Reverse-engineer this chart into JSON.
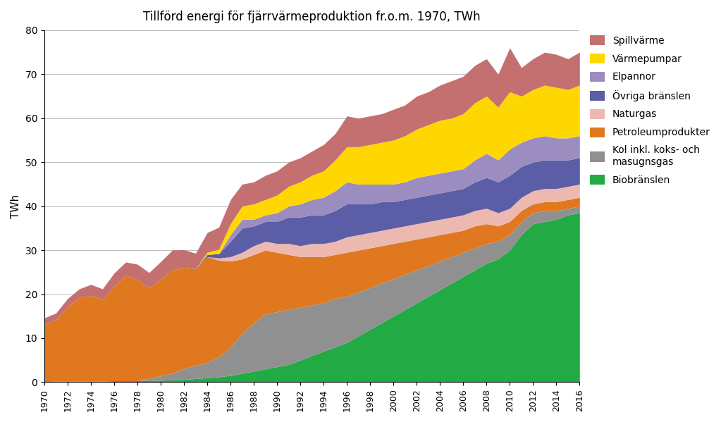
{
  "title": "Tillförd energi för fjärrvärmeproduktion fr.o.m. 1970, TWh",
  "ylabel": "TWh",
  "years": [
    1970,
    1971,
    1972,
    1973,
    1974,
    1975,
    1976,
    1977,
    1978,
    1979,
    1980,
    1981,
    1982,
    1983,
    1984,
    1985,
    1986,
    1987,
    1988,
    1989,
    1990,
    1991,
    1992,
    1993,
    1994,
    1995,
    1996,
    1997,
    1998,
    1999,
    2000,
    2001,
    2002,
    2003,
    2004,
    2005,
    2006,
    2007,
    2008,
    2009,
    2010,
    2011,
    2012,
    2013,
    2014,
    2015,
    2016
  ],
  "series": {
    "Biobranslen": [
      0.1,
      0.2,
      0.2,
      0.2,
      0.2,
      0.2,
      0.3,
      0.3,
      0.3,
      0.4,
      0.4,
      0.5,
      0.6,
      0.8,
      1.0,
      1.2,
      1.5,
      2.0,
      2.5,
      3.0,
      3.5,
      4.0,
      5.0,
      6.0,
      7.0,
      8.0,
      9.0,
      10.5,
      12.0,
      13.5,
      15.0,
      16.5,
      18.0,
      19.5,
      21.0,
      22.5,
      24.0,
      25.5,
      27.0,
      28.0,
      30.0,
      33.5,
      36.0,
      36.5,
      37.0,
      38.0,
      38.5
    ],
    "Kol": [
      0.0,
      0.0,
      0.0,
      0.0,
      0.0,
      0.0,
      0.0,
      0.0,
      0.0,
      0.5,
      1.0,
      1.5,
      2.5,
      3.0,
      3.5,
      4.5,
      6.5,
      9.0,
      11.0,
      12.5,
      12.5,
      12.5,
      12.0,
      11.5,
      11.0,
      11.0,
      10.5,
      10.0,
      9.5,
      9.0,
      8.5,
      8.0,
      7.5,
      7.0,
      6.5,
      6.0,
      5.5,
      5.0,
      4.5,
      4.0,
      3.5,
      3.0,
      2.5,
      2.5,
      2.0,
      1.5,
      1.5
    ],
    "Petroleumprodukter": [
      13.0,
      14.0,
      17.0,
      19.0,
      19.5,
      18.5,
      21.5,
      24.0,
      23.0,
      20.5,
      22.0,
      23.5,
      23.0,
      22.0,
      24.0,
      22.0,
      19.5,
      17.0,
      15.5,
      14.5,
      13.5,
      12.5,
      11.5,
      11.0,
      10.5,
      10.0,
      10.0,
      9.5,
      9.0,
      8.5,
      8.0,
      7.5,
      7.0,
      6.5,
      6.0,
      5.5,
      5.0,
      5.0,
      4.5,
      3.5,
      3.0,
      2.5,
      2.0,
      2.0,
      2.0,
      2.0,
      2.0
    ],
    "Naturgas": [
      0.0,
      0.0,
      0.0,
      0.0,
      0.0,
      0.0,
      0.0,
      0.0,
      0.0,
      0.0,
      0.0,
      0.0,
      0.0,
      0.0,
      0.0,
      0.5,
      1.0,
      1.5,
      2.0,
      2.0,
      2.0,
      2.5,
      2.5,
      3.0,
      3.0,
      3.0,
      3.5,
      3.5,
      3.5,
      3.5,
      3.5,
      3.5,
      3.5,
      3.5,
      3.5,
      3.5,
      3.5,
      3.5,
      3.5,
      3.0,
      3.0,
      3.0,
      3.0,
      3.0,
      3.0,
      3.0,
      3.0
    ],
    "Ovriga_branslen": [
      0.0,
      0.0,
      0.0,
      0.0,
      0.0,
      0.0,
      0.0,
      0.0,
      0.0,
      0.0,
      0.0,
      0.0,
      0.0,
      0.0,
      0.5,
      1.0,
      3.5,
      5.5,
      4.5,
      4.5,
      5.0,
      6.0,
      6.5,
      6.5,
      6.5,
      7.0,
      7.5,
      7.0,
      6.5,
      6.5,
      6.0,
      6.0,
      6.0,
      6.0,
      6.0,
      6.0,
      6.0,
      6.5,
      7.0,
      7.0,
      7.5,
      7.0,
      6.5,
      6.5,
      6.5,
      6.0,
      6.0
    ],
    "Elpannor": [
      0.0,
      0.0,
      0.0,
      0.0,
      0.0,
      0.0,
      0.0,
      0.0,
      0.0,
      0.0,
      0.0,
      0.0,
      0.0,
      0.0,
      0.0,
      0.0,
      1.5,
      2.0,
      1.5,
      1.5,
      2.0,
      2.5,
      3.0,
      3.5,
      4.0,
      4.5,
      5.0,
      4.5,
      4.5,
      4.0,
      4.0,
      4.0,
      4.5,
      4.5,
      4.5,
      4.5,
      4.5,
      5.0,
      5.5,
      5.0,
      6.0,
      5.5,
      5.5,
      5.5,
      5.0,
      5.0,
      5.0
    ],
    "Varmepumpar": [
      0.0,
      0.0,
      0.0,
      0.0,
      0.0,
      0.0,
      0.0,
      0.0,
      0.0,
      0.0,
      0.0,
      0.0,
      0.0,
      0.0,
      0.5,
      1.0,
      2.5,
      3.0,
      3.5,
      3.5,
      4.0,
      4.5,
      5.0,
      5.5,
      6.0,
      7.0,
      8.0,
      8.5,
      9.0,
      9.5,
      10.0,
      10.5,
      11.0,
      11.5,
      12.0,
      12.0,
      12.5,
      13.0,
      13.0,
      12.0,
      13.0,
      10.5,
      11.0,
      11.5,
      11.5,
      11.0,
      11.5
    ],
    "Spillvarme": [
      1.5,
      1.5,
      1.8,
      2.0,
      2.5,
      2.5,
      3.0,
      3.0,
      3.5,
      3.5,
      4.0,
      4.5,
      4.0,
      3.5,
      4.5,
      5.0,
      5.5,
      5.0,
      5.0,
      5.5,
      5.5,
      5.5,
      5.5,
      5.5,
      6.0,
      6.0,
      7.0,
      6.5,
      6.5,
      6.5,
      7.0,
      7.0,
      7.5,
      7.5,
      8.0,
      8.5,
      8.5,
      8.5,
      8.5,
      7.5,
      10.0,
      6.5,
      7.0,
      7.5,
      7.5,
      7.0,
      7.5
    ]
  },
  "colors": {
    "Biobranslen": "#22AA44",
    "Kol": "#909090",
    "Petroleumprodukter": "#E07820",
    "Naturgas": "#EDB8B0",
    "Ovriga_branslen": "#5B5EA6",
    "Elpannor": "#9B8DC0",
    "Varmepumpar": "#FFD700",
    "Spillvarme": "#C47070"
  },
  "legend_labels": {
    "Biobranslen": "Biobränslen",
    "Kol": "Kol inkl. koks- och\nmasugnsgas",
    "Petroleumprodukter": "Petroleumprodukter",
    "Naturgas": "Naturgas",
    "Ovriga_branslen": "Övriga bränslen",
    "Elpannor": "Elpannor",
    "Varmepumpar": "Värmepumpar",
    "Spillvarme": "Spillvärme"
  },
  "ylim": [
    0,
    80
  ],
  "xlim": [
    1970,
    2016
  ]
}
